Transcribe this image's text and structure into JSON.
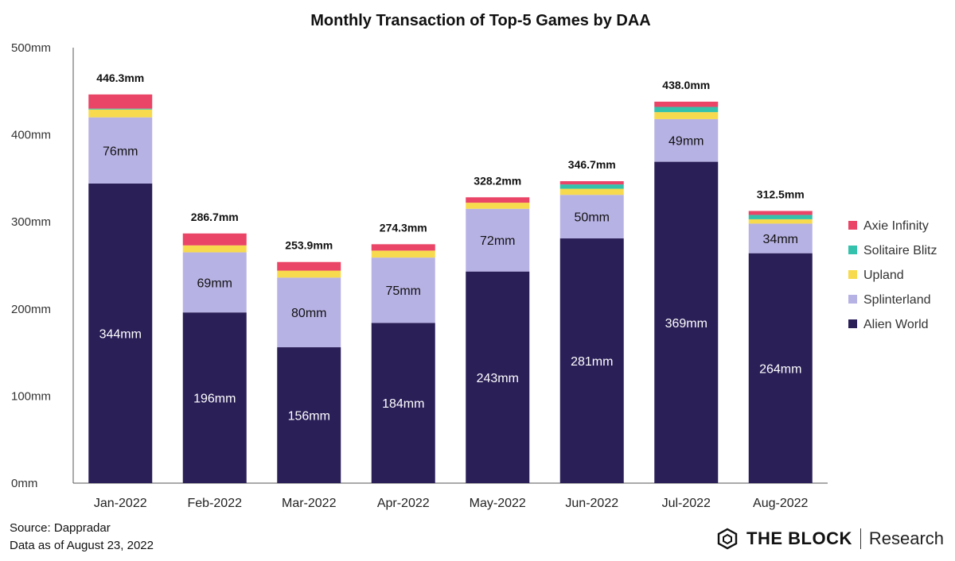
{
  "chart_data": {
    "type": "bar",
    "stacked": true,
    "title": "Monthly Transaction of Top-5 Games by DAA",
    "categories": [
      "Jan-2022",
      "Feb-2022",
      "Mar-2022",
      "Apr-2022",
      "May-2022",
      "Jun-2022",
      "Jul-2022",
      "Aug-2022"
    ],
    "ylim": [
      0,
      500
    ],
    "yticks": [
      0,
      100,
      200,
      300,
      400,
      500
    ],
    "ytick_labels": [
      "0mm",
      "100mm",
      "200mm",
      "300mm",
      "400mm",
      "500mm"
    ],
    "series": [
      {
        "name": "Alien World",
        "color": "#2b1f58",
        "values": [
          344,
          196,
          156,
          184,
          243,
          281,
          369,
          264
        ],
        "labels": [
          "344mm",
          "196mm",
          "156mm",
          "184mm",
          "243mm",
          "281mm",
          "369mm",
          "264mm"
        ]
      },
      {
        "name": "Splinterland",
        "color": "#b7b2e4",
        "values": [
          76,
          69,
          80,
          75,
          72,
          50,
          49,
          34
        ],
        "labels": [
          "76mm",
          "69mm",
          "80mm",
          "75mm",
          "72mm",
          "50mm",
          "49mm",
          "34mm"
        ]
      },
      {
        "name": "Upland",
        "color": "#f7da4d",
        "values": [
          9,
          8,
          8,
          8,
          7,
          7,
          8,
          5
        ]
      },
      {
        "name": "Solitaire Blitz",
        "color": "#35c2ad",
        "values": [
          1,
          0,
          0,
          0,
          0,
          5,
          6,
          5
        ]
      },
      {
        "name": "Axie Infinity",
        "color": "#ea4466",
        "values": [
          16.3,
          13.7,
          9.9,
          7.3,
          6.2,
          3.7,
          6.0,
          4.5
        ]
      }
    ],
    "totals": [
      446.3,
      286.7,
      253.9,
      274.3,
      328.2,
      346.7,
      438.0,
      312.5
    ],
    "total_labels": [
      "446.3mm",
      "286.7mm",
      "253.9mm",
      "274.3mm",
      "328.2mm",
      "346.7mm",
      "438.0mm",
      "312.5mm"
    ],
    "legend_order": [
      "Axie Infinity",
      "Solitaire Blitz",
      "Upland",
      "Splinterland",
      "Alien World"
    ],
    "legend_position": "right"
  },
  "footer": {
    "source": "Source: Dappradar",
    "date": "Data as of August 23, 2022"
  },
  "brand": {
    "name": "THE BLOCK",
    "sub": "Research"
  }
}
